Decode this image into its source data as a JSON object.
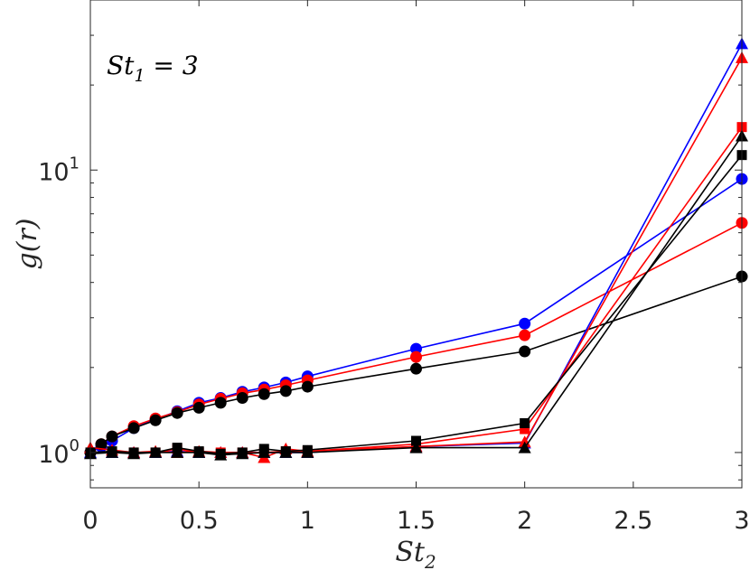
{
  "chart_data": {
    "type": "line",
    "title": "",
    "annotation": {
      "base": "St",
      "sub": "1",
      "rest": " = 3"
    },
    "xlabel": {
      "base": "St",
      "sub": "2"
    },
    "ylabel": "g(r)",
    "xlim": [
      0,
      3
    ],
    "ylim": [
      0.75,
      40
    ],
    "yscale": "log",
    "grid": false,
    "legend": "none",
    "xticks": [
      {
        "value": 0,
        "label": "0"
      },
      {
        "value": 0.5,
        "label": "0.5"
      },
      {
        "value": 1,
        "label": "1"
      },
      {
        "value": 1.5,
        "label": "1.5"
      },
      {
        "value": 2,
        "label": "2"
      },
      {
        "value": 2.5,
        "label": "2.5"
      },
      {
        "value": 3,
        "label": "3"
      }
    ],
    "yticks": [
      {
        "value": 1,
        "base": "10",
        "exp": "0"
      },
      {
        "value": 10,
        "base": "10",
        "exp": "1"
      }
    ],
    "series": [
      {
        "color": "#0000ff",
        "marker": "circle",
        "x": [
          0,
          0.05,
          0.1,
          0.2,
          0.3,
          0.4,
          0.5,
          0.6,
          0.7,
          0.8,
          0.9,
          1,
          1.5,
          2,
          3
        ],
        "y": [
          1.0,
          1.05,
          1.1,
          1.22,
          1.31,
          1.4,
          1.5,
          1.56,
          1.64,
          1.7,
          1.77,
          1.86,
          2.33,
          2.86,
          9.3
        ]
      },
      {
        "color": "#ff0000",
        "marker": "circle",
        "x": [
          0,
          0.05,
          0.1,
          0.2,
          0.3,
          0.4,
          0.5,
          0.6,
          0.7,
          0.8,
          0.9,
          1,
          1.5,
          2,
          3
        ],
        "y": [
          1.0,
          1.07,
          1.14,
          1.24,
          1.32,
          1.39,
          1.48,
          1.55,
          1.62,
          1.67,
          1.73,
          1.8,
          2.18,
          2.6,
          6.5
        ]
      },
      {
        "color": "#000000",
        "marker": "circle",
        "x": [
          0,
          0.05,
          0.1,
          0.2,
          0.3,
          0.4,
          0.5,
          0.6,
          0.7,
          0.8,
          0.9,
          1,
          1.5,
          2,
          3
        ],
        "y": [
          1.0,
          1.07,
          1.14,
          1.22,
          1.3,
          1.38,
          1.44,
          1.5,
          1.56,
          1.61,
          1.65,
          1.71,
          1.98,
          2.28,
          4.2
        ]
      },
      {
        "color": "#0000ff",
        "marker": "triangle",
        "x": [
          0,
          0.1,
          0.2,
          0.3,
          0.4,
          0.5,
          0.6,
          0.7,
          0.8,
          0.9,
          1,
          1.5,
          2,
          3
        ],
        "y": [
          1.0,
          1.0,
          1.0,
          1.0,
          1.01,
          1.0,
          1.0,
          1.0,
          1.0,
          1.0,
          1.0,
          1.05,
          1.08,
          28.0
        ]
      },
      {
        "color": "#ff0000",
        "marker": "triangle",
        "x": [
          0,
          0.1,
          0.2,
          0.3,
          0.4,
          0.5,
          0.6,
          0.7,
          0.8,
          0.9,
          1,
          1.5,
          2,
          3
        ],
        "y": [
          1.04,
          1.02,
          1.0,
          1.01,
          1.0,
          1.01,
          1.0,
          1.0,
          0.96,
          1.03,
          1.01,
          1.05,
          1.09,
          25.0
        ]
      },
      {
        "color": "#ff0000",
        "marker": "square",
        "x": [
          0,
          0.1,
          0.2,
          0.3,
          0.4,
          0.5,
          0.6,
          0.7,
          0.8,
          0.9,
          1,
          1.5,
          2,
          3
        ],
        "y": [
          1.0,
          1.0,
          1.0,
          1.0,
          1.03,
          1.0,
          1.0,
          1.0,
          1.0,
          1.01,
          1.01,
          1.07,
          1.21,
          14.2
        ]
      },
      {
        "color": "#000000",
        "marker": "square",
        "x": [
          0,
          0.1,
          0.2,
          0.3,
          0.4,
          0.5,
          0.6,
          0.7,
          0.8,
          0.9,
          1,
          1.5,
          2,
          3
        ],
        "y": [
          1.0,
          1.01,
          1.0,
          1.0,
          1.04,
          1.01,
          0.99,
          1.0,
          1.03,
          1.01,
          1.02,
          1.1,
          1.27,
          11.3
        ]
      },
      {
        "color": "#000000",
        "marker": "triangle",
        "x": [
          0,
          0.1,
          0.2,
          0.3,
          0.4,
          0.5,
          0.6,
          0.7,
          0.8,
          0.9,
          1,
          1.5,
          2,
          3
        ],
        "y": [
          0.99,
          1.0,
          0.99,
          1.0,
          1.0,
          1.0,
          0.98,
          0.99,
          1.0,
          1.0,
          1.0,
          1.04,
          1.04,
          13.2
        ]
      }
    ]
  }
}
